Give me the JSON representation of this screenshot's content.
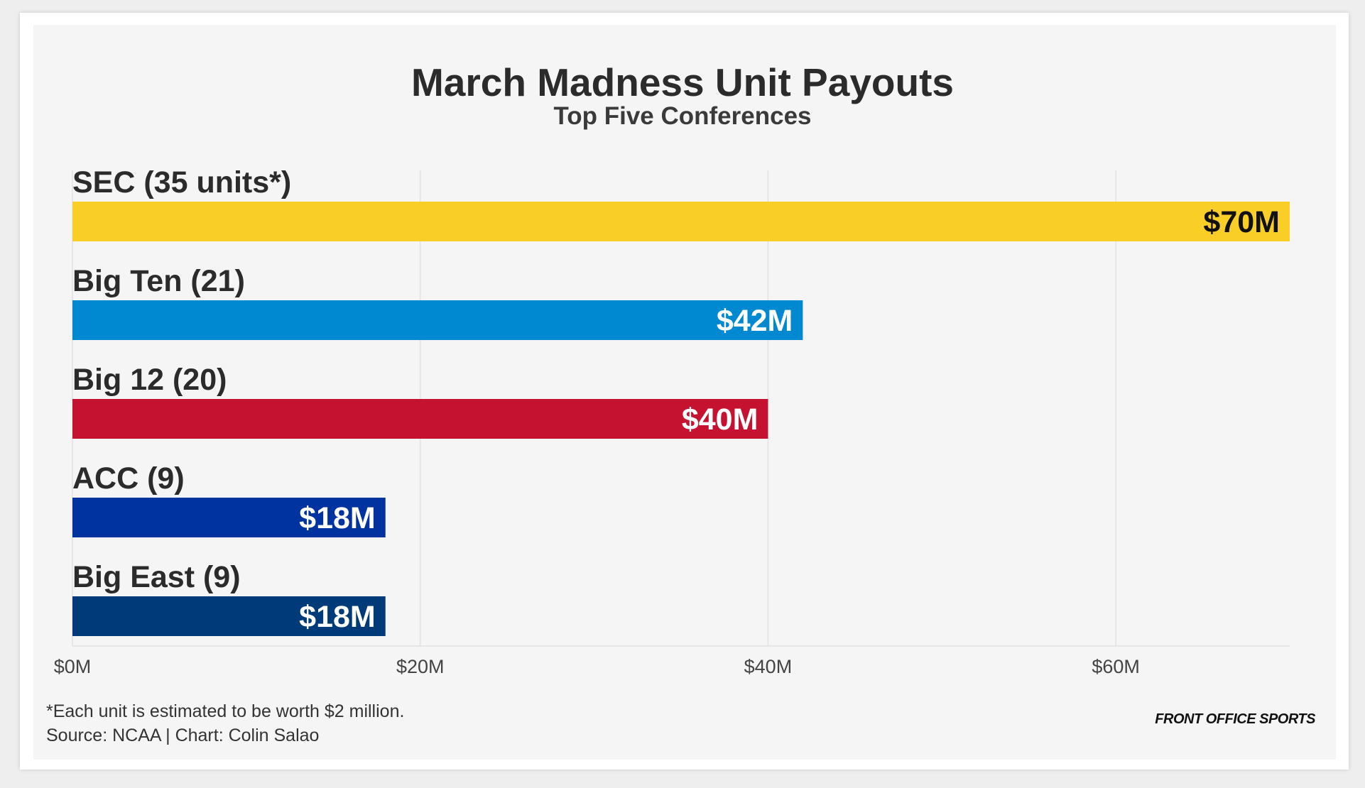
{
  "chart_data": {
    "type": "bar",
    "orientation": "horizontal",
    "title": "March Madness Unit Payouts",
    "subtitle": "Top Five Conferences",
    "categories": [
      "SEC (35 units*)",
      "Big Ten (21)",
      "Big 12 (20)",
      "ACC (9)",
      "Big East (9)"
    ],
    "values": [
      70,
      42,
      40,
      18,
      18
    ],
    "value_labels": [
      "$70M",
      "$42M",
      "$40M",
      "$18M",
      "$18M"
    ],
    "colors": [
      "#f9cf27",
      "#0089d0",
      "#c41230",
      "#0033a0",
      "#003a79"
    ],
    "value_label_colors": [
      "#111111",
      "#ffffff",
      "#ffffff",
      "#ffffff",
      "#ffffff"
    ],
    "x_ticks": [
      0,
      20,
      40,
      60
    ],
    "x_tick_labels": [
      "$0M",
      "$20M",
      "$40M",
      "$60M"
    ],
    "xlim": [
      0,
      70
    ],
    "xlabel": "",
    "ylabel": "",
    "grid": true,
    "legend": "none"
  },
  "footer": {
    "note": "*Each unit is estimated to be worth $2 million.",
    "source": "Source: NCAA | Chart: Colin Salao",
    "logo_text": "FRONT OFFICE SPORTS"
  }
}
